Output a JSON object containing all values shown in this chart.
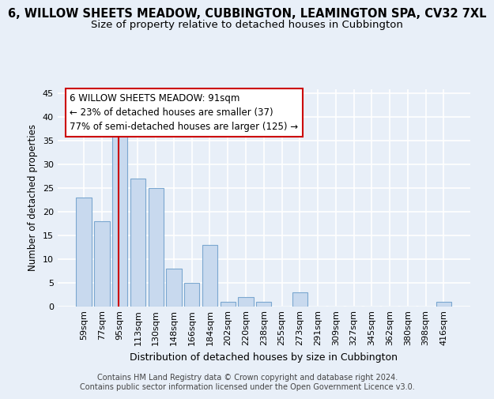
{
  "title": "6, WILLOW SHEETS MEADOW, CUBBINGTON, LEAMINGTON SPA, CV32 7XL",
  "subtitle": "Size of property relative to detached houses in Cubbington",
  "xlabel": "Distribution of detached houses by size in Cubbington",
  "ylabel": "Number of detached properties",
  "categories": [
    "59sqm",
    "77sqm",
    "95sqm",
    "113sqm",
    "130sqm",
    "148sqm",
    "166sqm",
    "184sqm",
    "202sqm",
    "220sqm",
    "238sqm",
    "255sqm",
    "273sqm",
    "291sqm",
    "309sqm",
    "327sqm",
    "345sqm",
    "362sqm",
    "380sqm",
    "398sqm",
    "416sqm"
  ],
  "values": [
    23,
    18,
    36,
    27,
    25,
    8,
    5,
    13,
    1,
    2,
    1,
    0,
    3,
    0,
    0,
    0,
    0,
    0,
    0,
    0,
    1
  ],
  "bar_color": "#c8d9ee",
  "bar_edge_color": "#7ba7d0",
  "background_color": "#e8eff8",
  "grid_color": "#ffffff",
  "vline_color": "#cc0000",
  "annotation_text": "6 WILLOW SHEETS MEADOW: 91sqm\n← 23% of detached houses are smaller (37)\n77% of semi-detached houses are larger (125) →",
  "annotation_box_facecolor": "#ffffff",
  "annotation_box_edgecolor": "#cc0000",
  "ylim": [
    0,
    46
  ],
  "yticks": [
    0,
    5,
    10,
    15,
    20,
    25,
    30,
    35,
    40,
    45
  ],
  "footer": "Contains HM Land Registry data © Crown copyright and database right 2024.\nContains public sector information licensed under the Open Government Licence v3.0.",
  "title_fontsize": 10.5,
  "subtitle_fontsize": 9.5,
  "xlabel_fontsize": 9,
  "ylabel_fontsize": 8.5,
  "tick_fontsize": 8,
  "annotation_fontsize": 8.5,
  "footer_fontsize": 7
}
